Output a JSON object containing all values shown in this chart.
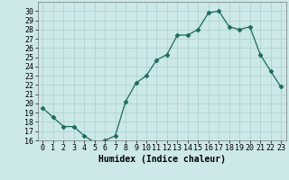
{
  "x": [
    0,
    1,
    2,
    3,
    4,
    5,
    6,
    7,
    8,
    9,
    10,
    11,
    12,
    13,
    14,
    15,
    16,
    17,
    18,
    19,
    20,
    21,
    22,
    23
  ],
  "y": [
    19.5,
    18.5,
    17.5,
    17.5,
    16.5,
    15.8,
    16.0,
    16.5,
    20.2,
    22.2,
    23.0,
    24.7,
    25.3,
    27.4,
    27.4,
    28.0,
    29.8,
    30.0,
    28.3,
    28.0,
    28.3,
    25.3,
    23.5,
    21.8
  ],
  "line_color": "#1a6b5c",
  "marker": "D",
  "marker_size": 2.5,
  "bg_color": "#cce8e8",
  "grid_color": "#aacfcf",
  "xlabel": "Humidex (Indice chaleur)",
  "ylim": [
    16,
    31
  ],
  "xlim": [
    -0.5,
    23.5
  ],
  "yticks": [
    16,
    17,
    18,
    19,
    20,
    21,
    22,
    23,
    24,
    25,
    26,
    27,
    28,
    29,
    30
  ],
  "xtick_labels": [
    "0",
    "1",
    "2",
    "3",
    "4",
    "5",
    "6",
    "7",
    "8",
    "9",
    "10",
    "11",
    "12",
    "13",
    "14",
    "15",
    "16",
    "17",
    "18",
    "19",
    "20",
    "21",
    "22",
    "23"
  ],
  "axis_fontsize": 7,
  "tick_fontsize": 6
}
